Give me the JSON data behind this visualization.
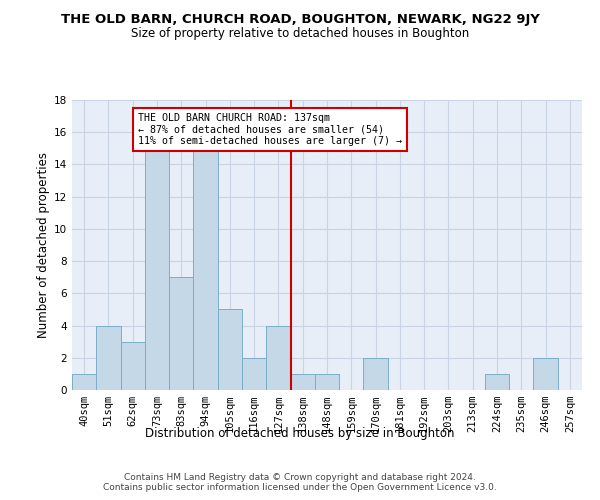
{
  "title": "THE OLD BARN, CHURCH ROAD, BOUGHTON, NEWARK, NG22 9JY",
  "subtitle": "Size of property relative to detached houses in Boughton",
  "xlabel": "Distribution of detached houses by size in Boughton",
  "ylabel": "Number of detached properties",
  "bins": [
    "40sqm",
    "51sqm",
    "62sqm",
    "73sqm",
    "83sqm",
    "94sqm",
    "105sqm",
    "116sqm",
    "127sqm",
    "138sqm",
    "148sqm",
    "159sqm",
    "170sqm",
    "181sqm",
    "192sqm",
    "203sqm",
    "213sqm",
    "224sqm",
    "235sqm",
    "246sqm",
    "257sqm"
  ],
  "values": [
    1,
    4,
    3,
    15,
    7,
    15,
    5,
    2,
    4,
    1,
    1,
    0,
    2,
    0,
    0,
    0,
    0,
    1,
    0,
    2,
    0
  ],
  "bar_color": "#c5d8e8",
  "bar_edge_color": "#7aafc8",
  "grid_color": "#c8d4e4",
  "background_color": "#e8eef8",
  "vline_x": 8.5,
  "vline_color": "#cc0000",
  "annotation_text": "THE OLD BARN CHURCH ROAD: 137sqm\n← 87% of detached houses are smaller (54)\n11% of semi-detached houses are larger (7) →",
  "annotation_box_edgecolor": "#cc0000",
  "ylim": [
    0,
    18
  ],
  "yticks": [
    0,
    2,
    4,
    6,
    8,
    10,
    12,
    14,
    16,
    18
  ],
  "title_fontsize": 9.5,
  "subtitle_fontsize": 8.5,
  "ylabel_fontsize": 8.5,
  "xlabel_fontsize": 8.5,
  "tick_fontsize": 7.5,
  "footer": "Contains HM Land Registry data © Crown copyright and database right 2024.\nContains public sector information licensed under the Open Government Licence v3.0.",
  "footer_fontsize": 6.5
}
